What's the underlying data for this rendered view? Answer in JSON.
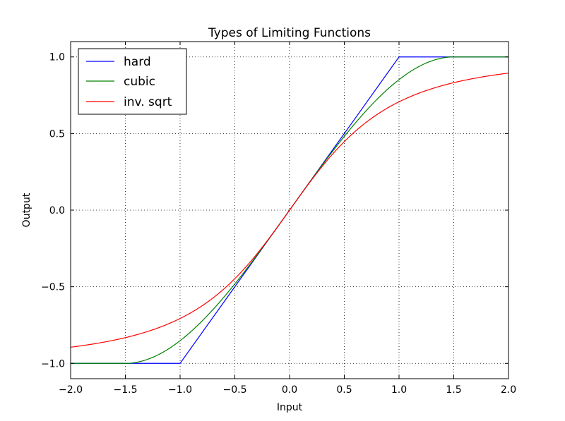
{
  "chart_data": {
    "type": "line",
    "title": "Types of Limiting Functions",
    "xlabel": "Input",
    "ylabel": "Output",
    "xlim": [
      -2.0,
      2.0
    ],
    "ylim": [
      -1.1,
      1.1
    ],
    "xticks": [
      -2.0,
      -1.5,
      -1.0,
      -0.5,
      0.0,
      0.5,
      1.0,
      1.5,
      2.0
    ],
    "xtick_labels": [
      "−2.0",
      "−1.5",
      "−1.0",
      "−0.5",
      "0.0",
      "0.5",
      "1.0",
      "1.5",
      "2.0"
    ],
    "yticks": [
      -1.0,
      -0.5,
      0.0,
      0.5,
      1.0
    ],
    "ytick_labels": [
      "−1.0",
      "−0.5",
      "0.0",
      "0.5",
      "1.0"
    ],
    "grid": true,
    "legend_position": "top-left",
    "series": [
      {
        "name": "hard",
        "color": "#0000ff",
        "x": [
          -2.0,
          -1.5,
          -1.0,
          -0.5,
          0.0,
          0.5,
          1.0,
          1.5,
          2.0
        ],
        "y": [
          -1.0,
          -1.0,
          -1.0,
          -0.5,
          0.0,
          0.5,
          1.0,
          1.0,
          1.0
        ]
      },
      {
        "name": "cubic",
        "color": "#008000",
        "x": [
          -2.0,
          -1.75,
          -1.5,
          -1.25,
          -1.0,
          -0.75,
          -0.5,
          -0.25,
          0.0,
          0.25,
          0.5,
          0.75,
          1.0,
          1.25,
          1.5,
          1.75,
          2.0
        ],
        "y": [
          -1.0,
          -1.0,
          -1.0,
          -0.977,
          -0.852,
          -0.625,
          -0.37,
          -0.248,
          0.0,
          0.248,
          0.37,
          0.625,
          0.852,
          0.977,
          1.0,
          1.0,
          1.0
        ]
      },
      {
        "name": "inv. sqrt",
        "color": "#ff0000",
        "x": [
          -2.0,
          -1.75,
          -1.5,
          -1.25,
          -1.0,
          -0.75,
          -0.5,
          -0.25,
          0.0,
          0.25,
          0.5,
          0.75,
          1.0,
          1.25,
          1.5,
          1.75,
          2.0
        ],
        "y": [
          -0.894,
          -0.868,
          -0.832,
          -0.781,
          -0.707,
          -0.6,
          -0.447,
          -0.243,
          0.0,
          0.243,
          0.447,
          0.6,
          0.707,
          0.781,
          0.832,
          0.868,
          0.894
        ]
      }
    ]
  }
}
